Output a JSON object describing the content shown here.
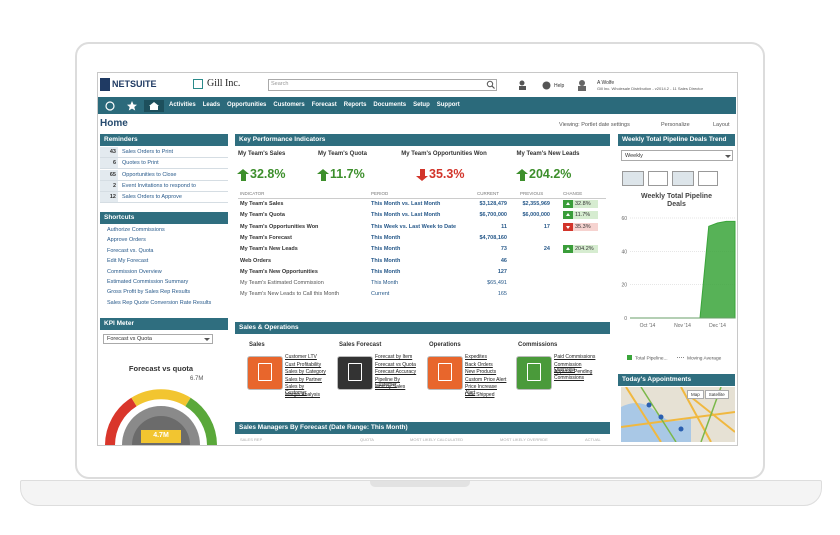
{
  "header": {
    "logo": "NETSUITE",
    "company": "Gill Inc.",
    "search_placeholder": "Search",
    "help": "Help",
    "user": "A Wolfe",
    "role": "Gill Inc. Wholesale Distribution - v2014.2 - 11 Sales Director"
  },
  "nav": [
    "Activities",
    "Leads",
    "Opportunities",
    "Customers",
    "Forecast",
    "Reports",
    "Documents",
    "Setup",
    "Support"
  ],
  "page": {
    "title": "Home",
    "viewing": "Viewing: Portlet date settings",
    "personalize": "Personalize",
    "layout": "Layout"
  },
  "reminders": {
    "title": "Reminders",
    "items": [
      {
        "count": 43,
        "label": "Sales Orders to Print"
      },
      {
        "count": 6,
        "label": "Quotes to Print"
      },
      {
        "count": 65,
        "label": "Opportunities to Close"
      },
      {
        "count": 2,
        "label": "Event Invitations to respond to"
      },
      {
        "count": 12,
        "label": "Sales Orders to Approve"
      }
    ]
  },
  "shortcuts": {
    "title": "Shortcuts",
    "items": [
      "Authorize Commissions",
      "Approve Orders",
      "Forecast vs. Quota",
      "Edit My Forecast",
      "Commission Overview",
      "Estimated Commission Summary",
      "Gross Profit by Sales Rep Results",
      "Sales Rep Quote Conversion Rate Results"
    ]
  },
  "kpi_meter": {
    "title": "KPI Meter",
    "select": "Forecast vs Quota",
    "gauge_title": "Forecast vs quota",
    "max_label": "6.7M",
    "value_label": "4.7M"
  },
  "kpi": {
    "title": "Key Performance Indicators",
    "summary": [
      {
        "label": "My Team's Sales",
        "change": "32.8%",
        "trend": "up"
      },
      {
        "label": "My Team's Quota",
        "change": "11.7%",
        "trend": "up"
      },
      {
        "label": "My Team's Opportunities Won",
        "change": "35.3%",
        "trend": "down"
      },
      {
        "label": "My Team's New Leads",
        "change": "204.2%",
        "trend": "up"
      }
    ],
    "columns": [
      "INDICATOR",
      "PERIOD",
      "CURRENT",
      "PREVIOUS",
      "CHANGE"
    ],
    "rows": [
      {
        "indicator": "My Team's Sales",
        "period": "This Month vs. Last Month",
        "current": "$3,128,479",
        "previous": "$2,355,969",
        "change": "32.8%",
        "trend": "up"
      },
      {
        "indicator": "My Team's Quota",
        "period": "This Month vs. Last Month",
        "current": "$6,700,000",
        "previous": "$6,000,000",
        "change": "11.7%",
        "trend": "up"
      },
      {
        "indicator": "My Team's Opportunities Won",
        "period": "This Week vs. Last Week to Date",
        "current": "11",
        "previous": "17",
        "change": "35.3%",
        "trend": "down"
      },
      {
        "indicator": "My Team's Forecast",
        "period": "This Month",
        "current": "$4,708,160"
      },
      {
        "indicator": "My Team's New Leads",
        "period": "This Month",
        "current": "73",
        "previous": "24",
        "change": "204.2%",
        "trend": "up"
      },
      {
        "indicator": "Web Orders",
        "period": "This Month",
        "current": "46"
      },
      {
        "indicator": "My Team's New Opportunities",
        "period": "This Month",
        "current": "127"
      },
      {
        "indicator": "My Team's Estimated Commission",
        "period": "This Month",
        "current": "$65,491"
      },
      {
        "indicator": "My Team's New Leads to Call this Month",
        "period": "Current",
        "current": "165"
      }
    ]
  },
  "sales_ops": {
    "title": "Sales & Operations",
    "groups": [
      {
        "title": "Sales",
        "color": "#e8662c",
        "links": [
          "Customer LTV",
          "Cust Profitability",
          "Sales by Category",
          "Sales by Partner",
          "Sales by Customer",
          "Margin Analysis"
        ]
      },
      {
        "title": "Sales Forecast",
        "color": "#333333",
        "links": [
          "Forecast by Item",
          "Forecast vs Quota",
          "Forecast Accuracy",
          "Pipeline By Customer",
          "First by Sales"
        ]
      },
      {
        "title": "Operations",
        "color": "#e8662c",
        "links": [
          "Expedites",
          "Back Orders",
          "New Products",
          "Custom Price Alert",
          "Price Increase Alert",
          "Late Shipped"
        ]
      },
      {
        "title": "Commissions",
        "color": "#4a9a3a",
        "links": [
          "Paid Commissions",
          "Commission Overview",
          "Approve Pending Commissions"
        ]
      }
    ]
  },
  "sales_managers": {
    "title": "Sales Managers By Forecast (Date Range: This Month)",
    "columns": [
      "SALES REP",
      "QUOTA",
      "MOST LIKELY CALCULATED",
      "MOST LIKELY OVERRIDE",
      "ACTUAL"
    ]
  },
  "pipeline": {
    "title": "Weekly Total Pipeline Deals Trend",
    "select": "Weekly",
    "chart": {
      "type": "area",
      "title": "Weekly Total Pipeline Deals",
      "categories": [
        null,
        null,
        "Oct '14",
        null,
        null,
        null,
        "Nov '14",
        null,
        null,
        null,
        "Dec '14",
        null,
        null
      ],
      "series": [
        {
          "name": "Total Pipeline...",
          "color": "#3aa53a",
          "values": [
            0,
            0,
            0,
            0,
            0,
            0,
            0,
            0,
            0,
            55,
            57,
            58,
            58
          ]
        }
      ],
      "legend": [
        "Total Pipeline...",
        "Moving Average"
      ],
      "ylim": [
        0,
        60
      ],
      "yticks": [
        0,
        20,
        40,
        60
      ],
      "grid": true
    }
  },
  "appointments": {
    "title": "Today's Appointments",
    "map_buttons": [
      "Map",
      "Satellite"
    ]
  }
}
